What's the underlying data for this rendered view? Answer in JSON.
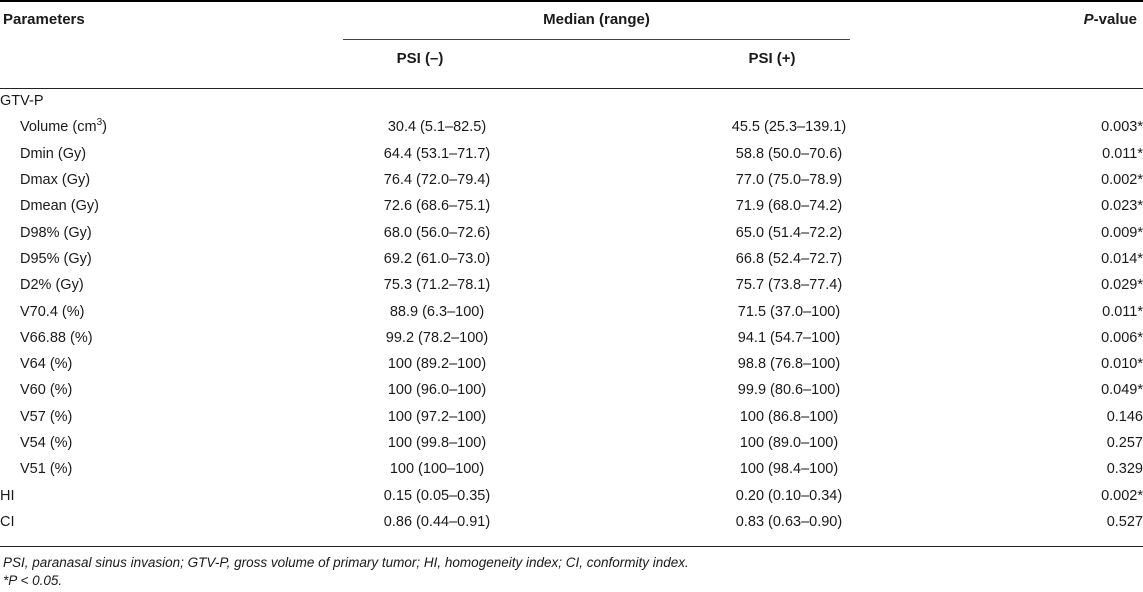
{
  "header": {
    "parameters": "Parameters",
    "median_range": "Median (range)",
    "p_letter": "P",
    "p_suffix": "-value",
    "psi_neg": "PSI (–)",
    "psi_pos": "PSI (+)"
  },
  "rows": [
    {
      "param": "GTV-P",
      "indent": false,
      "neg": "",
      "pos": "",
      "p": ""
    },
    {
      "param_prefix": "Volume (cm",
      "param_sup": "3",
      "param_suffix": ")",
      "indent": true,
      "neg": "30.4 (5.1–82.5)",
      "pos": "45.5 (25.3–139.1)",
      "p": "0.003*"
    },
    {
      "param": "Dmin (Gy)",
      "indent": true,
      "neg": "64.4 (53.1–71.7)",
      "pos": "58.8 (50.0–70.6)",
      "p": "0.011*"
    },
    {
      "param": "Dmax (Gy)",
      "indent": true,
      "neg": "76.4 (72.0–79.4)",
      "pos": "77.0 (75.0–78.9)",
      "p": "0.002*"
    },
    {
      "param": "Dmean (Gy)",
      "indent": true,
      "neg": "72.6 (68.6–75.1)",
      "pos": "71.9 (68.0–74.2)",
      "p": "0.023*"
    },
    {
      "param": "D98% (Gy)",
      "indent": true,
      "neg": "68.0 (56.0–72.6)",
      "pos": "65.0 (51.4–72.2)",
      "p": "0.009*"
    },
    {
      "param": "D95% (Gy)",
      "indent": true,
      "neg": "69.2 (61.0–73.0)",
      "pos": "66.8 (52.4–72.7)",
      "p": "0.014*"
    },
    {
      "param": "D2% (Gy)",
      "indent": true,
      "neg": "75.3 (71.2–78.1)",
      "pos": "75.7 (73.8–77.4)",
      "p": "0.029*"
    },
    {
      "param": "V70.4 (%)",
      "indent": true,
      "neg": "88.9 (6.3–100)",
      "pos": "71.5 (37.0–100)",
      "p": "0.011*"
    },
    {
      "param": "V66.88 (%)",
      "indent": true,
      "neg": "99.2 (78.2–100)",
      "pos": "94.1 (54.7–100)",
      "p": "0.006*"
    },
    {
      "param": "V64 (%)",
      "indent": true,
      "neg": "100 (89.2–100)",
      "pos": "98.8 (76.8–100)",
      "p": "0.010*"
    },
    {
      "param": "V60 (%)",
      "indent": true,
      "neg": "100 (96.0–100)",
      "pos": "99.9 (80.6–100)",
      "p": "0.049*"
    },
    {
      "param": "V57 (%)",
      "indent": true,
      "neg": "100 (97.2–100)",
      "pos": "100 (86.8–100)",
      "p": "0.146"
    },
    {
      "param": "V54 (%)",
      "indent": true,
      "neg": "100 (99.8–100)",
      "pos": "100 (89.0–100)",
      "p": "0.257"
    },
    {
      "param": "V51 (%)",
      "indent": true,
      "neg": "100 (100–100)",
      "pos": "100 (98.4–100)",
      "p": "0.329"
    },
    {
      "param": "HI",
      "indent": false,
      "neg": "0.15 (0.05–0.35)",
      "pos": "0.20 (0.10–0.34)",
      "p": "0.002*"
    },
    {
      "param": "CI",
      "indent": false,
      "neg": "0.86 (0.44–0.91)",
      "pos": "0.83 (0.63–0.90)",
      "p": "0.527"
    }
  ],
  "footnotes": {
    "abbrev": "PSI, paranasal sinus invasion; GTV-P, gross volume of primary tumor; HI, homogeneity index; CI, conformity index.",
    "significance": "*P < 0.05."
  }
}
